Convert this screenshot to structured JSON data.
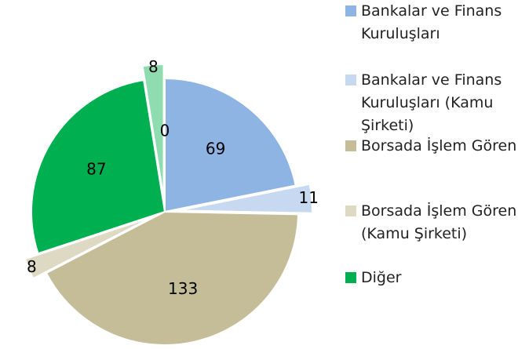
{
  "chart_data": {
    "type": "pie",
    "categories": [
      "Bankalar ve Finans Kuruluşları",
      "Bankalar ve Finans Kuruluşları (Kamu Şirketi)",
      "Borsada İşlem Gören",
      "Borsada İşlem Gören (Kamu Şirketi)",
      "Diğer",
      null,
      null
    ],
    "values": [
      69,
      11,
      133,
      8,
      87,
      8,
      0
    ],
    "colors": [
      "#8eb4e3",
      "#c6d9f1",
      "#c4bd97",
      "#ddd9c3",
      "#00b050",
      "#8fdcb0",
      "#b7e8cb"
    ],
    "legend": "right"
  }
}
